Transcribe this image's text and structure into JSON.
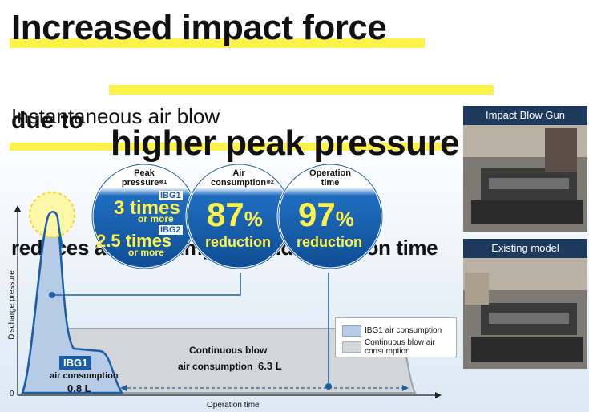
{
  "headline": {
    "line1": "Increased impact force",
    "line2_prefix": "due to",
    "line2_main": "higher peak pressure"
  },
  "subheadline": {
    "line1": "Instantaneous air blow",
    "line2": "reduces air consumption and operation time"
  },
  "circles": {
    "peak": {
      "title_line1": "Peak",
      "title_line2": "pressure",
      "note": "※1",
      "ibg1_tag": "IBG1",
      "ibg1_value": "3 times",
      "ibg1_suffix": "or more",
      "ibg2_tag": "IBG2",
      "ibg2_value": "2.5 times",
      "ibg2_suffix": "or more"
    },
    "air": {
      "title_line1": "Air",
      "title_line2": "consumption",
      "note": "※2",
      "value": "87",
      "unit": "%",
      "label": "reduction"
    },
    "time": {
      "title_line1": "Operation",
      "title_line2": "time",
      "value": "97",
      "unit": "%",
      "label": "reduction"
    }
  },
  "graph": {
    "y_axis_label": "Discharge pressure",
    "x_axis_label": "Operation time",
    "zero_label": "0",
    "ibg1_box_tag": "IBG1",
    "ibg1_line1": "air consumption",
    "ibg1_value": "0.8 L",
    "continuous_line1": "Continuous blow",
    "continuous_line2": "air consumption",
    "continuous_value": "6.3 L"
  },
  "legend": {
    "item1": "IBG1 air consumption",
    "item2_line1": "Continuous blow air",
    "item2_line2": "consumption",
    "color1": "#b6cbe6",
    "color2": "#d3d6d9"
  },
  "photos": {
    "top_caption": "Impact Blow Gun",
    "bottom_caption": "Existing model"
  },
  "colors": {
    "accent_yellow": "#fff24a",
    "circle_blue": "#1a5ea8",
    "navy": "#1d3a5c"
  }
}
